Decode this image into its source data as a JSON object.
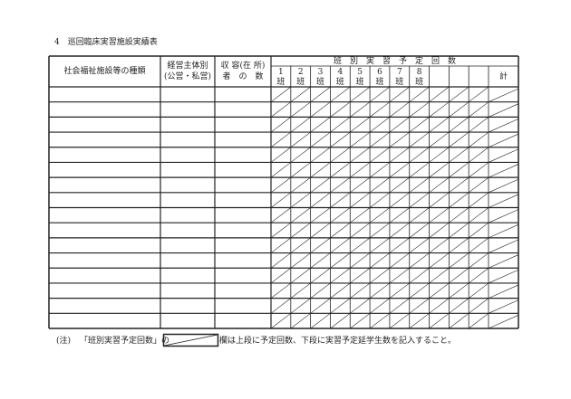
{
  "title": "4　巡回臨床実習施設実績表",
  "headers": {
    "facility_type": "社会福祉施設等の種類",
    "operator_line1": "経営主体別",
    "operator_line2": "(公営・私営)",
    "capacity_line1": "収 容(在 所)",
    "capacity_line2": "者　の　数",
    "group_header": "班　別　実　習　予　定　回　数",
    "groups": [
      {
        "num": "1",
        "unit": "班"
      },
      {
        "num": "2",
        "unit": "班"
      },
      {
        "num": "3",
        "unit": "班"
      },
      {
        "num": "4",
        "unit": "班"
      },
      {
        "num": "5",
        "unit": "班"
      },
      {
        "num": "6",
        "unit": "班"
      },
      {
        "num": "7",
        "unit": "班"
      },
      {
        "num": "8",
        "unit": "班"
      },
      {
        "num": "",
        "unit": ""
      },
      {
        "num": "",
        "unit": ""
      },
      {
        "num": "",
        "unit": ""
      }
    ],
    "total": "計"
  },
  "note": {
    "prefix": "(注)",
    "quoted": "「班別実習予定回数」の",
    "suffix": "欄は上段に予定回数、下段に実習予定延学生数を記入すること。"
  }
}
